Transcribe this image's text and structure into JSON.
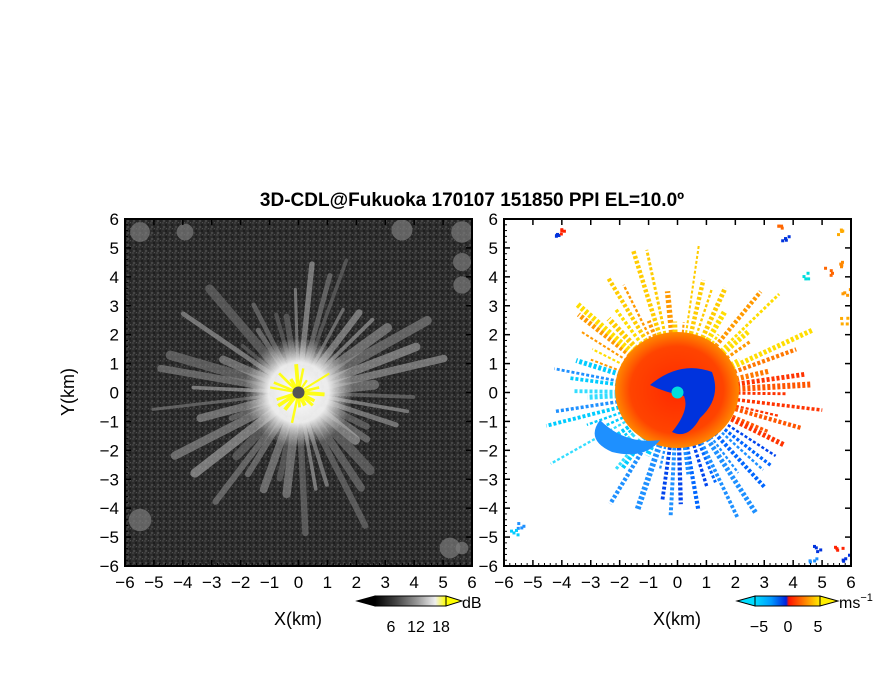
{
  "chart_data": [
    {
      "type": "heatmap",
      "panel": "left",
      "title": "3D-CDL@Fukuoka 170107 151850 PPI EL=10.0º",
      "xlabel": "X(km)",
      "ylabel": "Y(km)",
      "xlim": [
        -6,
        6
      ],
      "ylim": [
        -6,
        6
      ],
      "x_ticks": [
        "−6",
        "−5",
        "−4",
        "−3",
        "−2",
        "−1",
        "0",
        "1",
        "2",
        "3",
        "4",
        "5",
        "6"
      ],
      "y_ticks": [
        "6",
        "5",
        "4",
        "3",
        "2",
        "1",
        "0",
        "−1",
        "−2",
        "−3",
        "−4",
        "−5",
        "−6"
      ],
      "colorbar": {
        "unit": "dB",
        "ticks": [
          "6",
          "12",
          "18"
        ],
        "colors": [
          "#000000",
          "#444444",
          "#888888",
          "#cccccc",
          "#ffffff",
          "#ffff00"
        ]
      }
    },
    {
      "type": "heatmap",
      "panel": "right",
      "xlabel": "X(km)",
      "xlim": [
        -6,
        6
      ],
      "ylim": [
        -6,
        6
      ],
      "x_ticks": [
        "−6",
        "−5",
        "−4",
        "−3",
        "−2",
        "−1",
        "0",
        "1",
        "2",
        "3",
        "4",
        "5",
        "6"
      ],
      "y_ticks": [
        "6",
        "5",
        "4",
        "3",
        "2",
        "1",
        "0",
        "−1",
        "−2",
        "−3",
        "−4",
        "−5",
        "−6"
      ],
      "colorbar": {
        "unit": "ms",
        "unit_sup": "−1",
        "ticks": [
          "−5",
          "0",
          "5"
        ],
        "colors": [
          "#00ccff",
          "#0088ff",
          "#0022dd",
          "#ff2200",
          "#ff8800",
          "#ffdd00"
        ]
      }
    }
  ]
}
